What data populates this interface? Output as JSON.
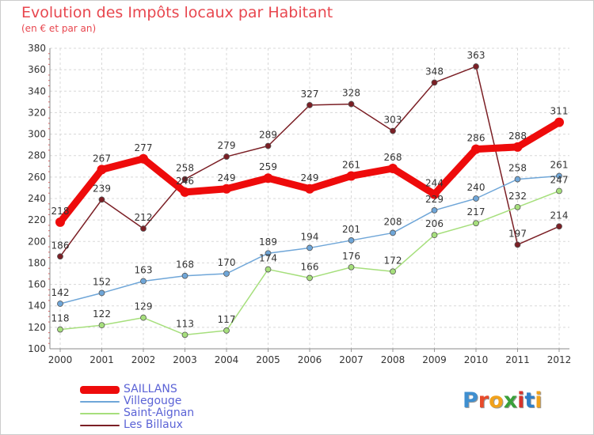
{
  "chart_data": {
    "type": "line",
    "title": "Evolution des Impôts locaux par Habitant",
    "subtitle": "(en € et par an)",
    "x": [
      2000,
      2001,
      2002,
      2003,
      2004,
      2005,
      2006,
      2007,
      2008,
      2009,
      2010,
      2011,
      2012
    ],
    "x_tick_labels": [
      "2000",
      "2001",
      "2002",
      "2003",
      "2004",
      "2005",
      "2006",
      "2007",
      "2008",
      "2009",
      "2010",
      "2011",
      "2012"
    ],
    "ylim": [
      100,
      380
    ],
    "y_ticks": [
      100,
      120,
      140,
      160,
      180,
      200,
      220,
      240,
      260,
      280,
      300,
      320,
      340,
      360,
      380
    ],
    "grid": true,
    "legend_position": "bottom-left",
    "series": [
      {
        "name": "Les Billaux",
        "color": "#7b1f25",
        "values": [
          186,
          239,
          212,
          258,
          279,
          289,
          327,
          328,
          303,
          348,
          363,
          197,
          214
        ]
      },
      {
        "name": "Saint-Aignan",
        "color": "#a6df7c",
        "values": [
          118,
          122,
          129,
          113,
          117,
          174,
          166,
          176,
          172,
          206,
          217,
          232,
          247
        ]
      },
      {
        "name": "Villegouge",
        "color": "#6fa6d8",
        "values": [
          142,
          152,
          163,
          168,
          170,
          189,
          194,
          201,
          208,
          229,
          240,
          258,
          261
        ]
      },
      {
        "name": "SAILLANS",
        "color": "#ee0b0b",
        "values": [
          218,
          267,
          277,
          246,
          249,
          259,
          249,
          261,
          268,
          244,
          286,
          288,
          311
        ]
      }
    ]
  },
  "legend": {
    "items": [
      {
        "label": "SAILLANS",
        "color": "#ee0b0b"
      },
      {
        "label": "Villegouge",
        "color": "#6fa6d8"
      },
      {
        "label": "Saint-Aignan",
        "color": "#a6df7c"
      },
      {
        "label": "Les Billaux",
        "color": "#7b1f25"
      }
    ]
  },
  "logo": {
    "letters": [
      "P",
      "r",
      "o",
      "x",
      "i",
      "t",
      "i"
    ],
    "colors": [
      "#3f8fd0",
      "#e84a2a",
      "#f1a21c",
      "#3aa03a",
      "#d6342c",
      "#2f7fc8",
      "#f0a21c"
    ]
  }
}
